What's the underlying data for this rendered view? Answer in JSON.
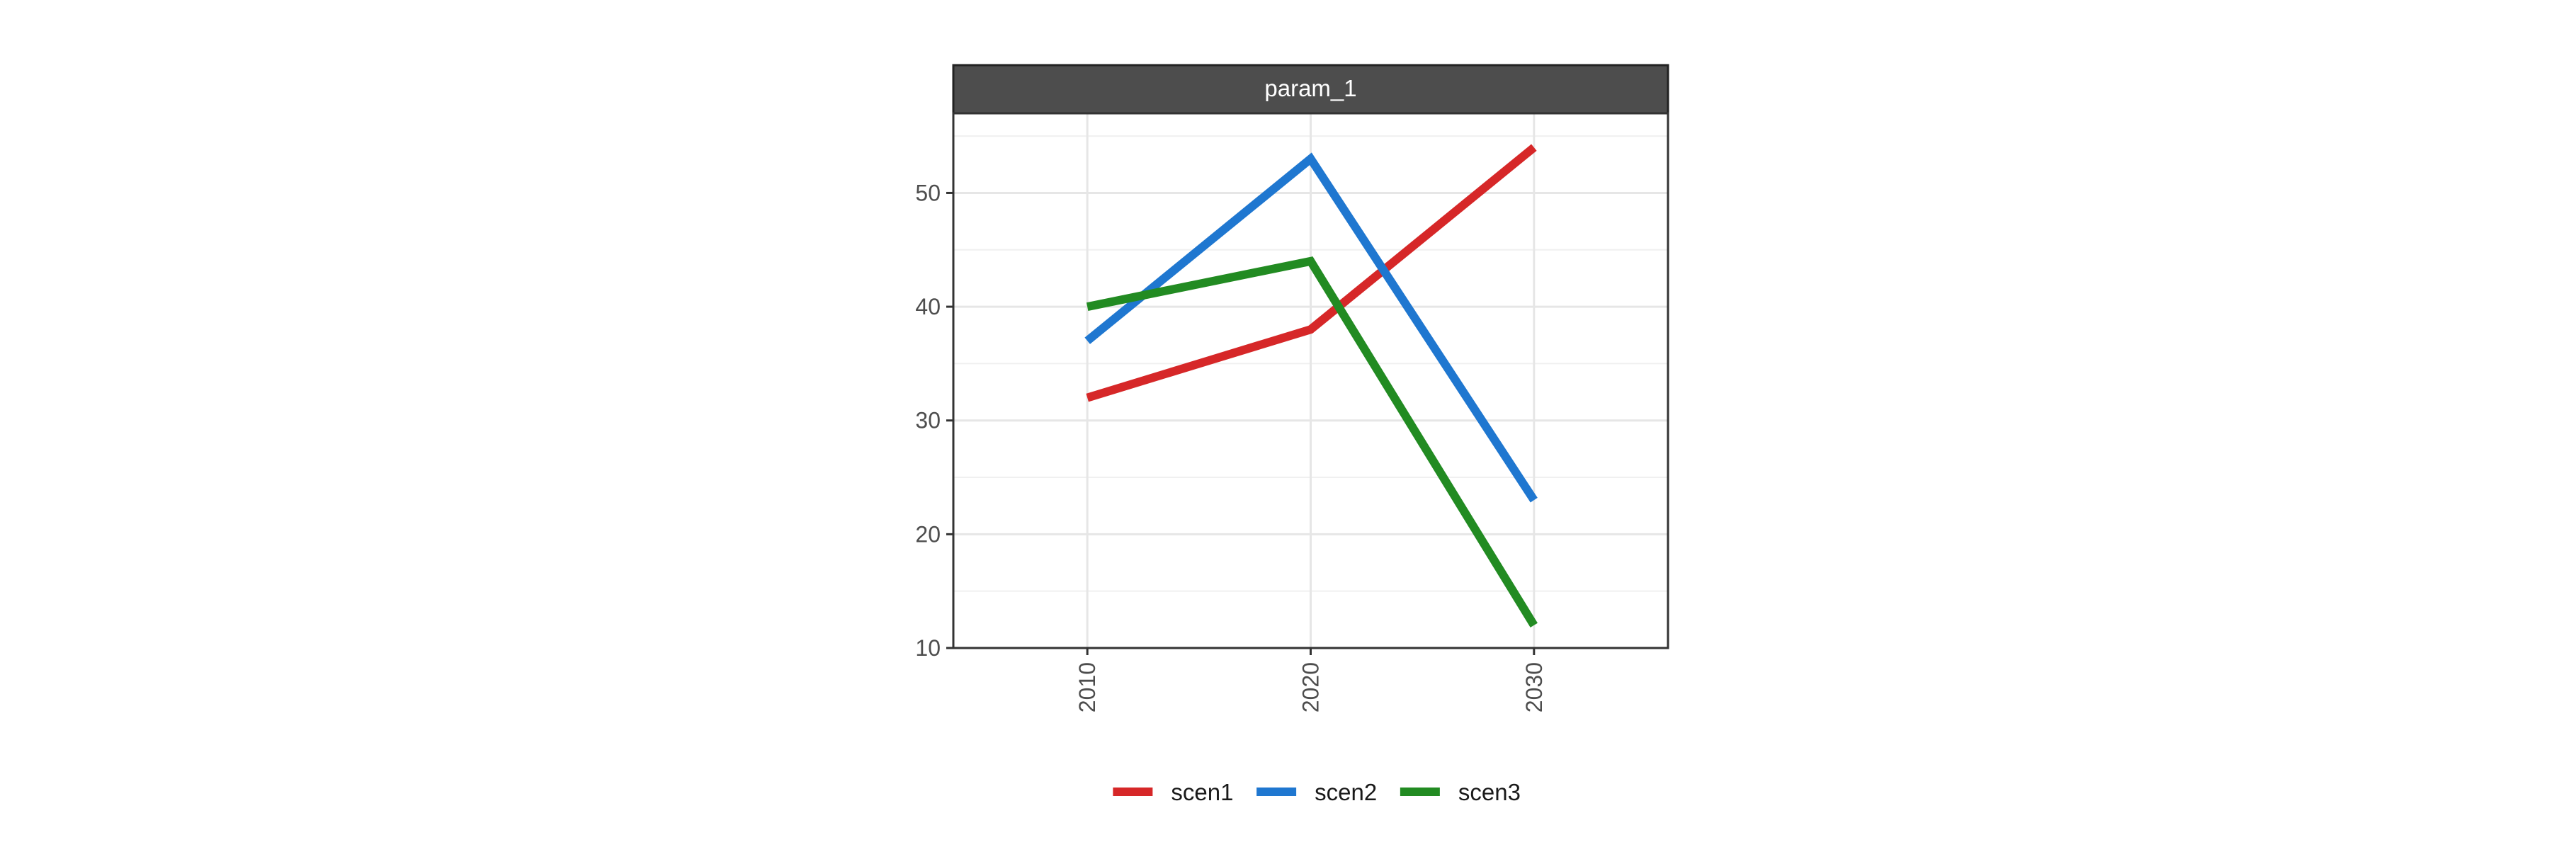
{
  "chart_data": {
    "type": "line",
    "title": "",
    "facet_label": "param_1",
    "x": [
      "2010",
      "2020",
      "2030"
    ],
    "xlim": [
      2004,
      2036
    ],
    "ylim": [
      10,
      57
    ],
    "y_ticks": [
      "10",
      "20",
      "30",
      "40",
      "50"
    ],
    "grid": true,
    "legend_position": "bottom",
    "series": [
      {
        "name": "scen1",
        "color": "#d62728",
        "values": [
          32,
          38,
          54
        ]
      },
      {
        "name": "scen2",
        "color": "#1f77d0",
        "values": [
          37,
          53,
          23
        ]
      },
      {
        "name": "scen3",
        "color": "#228b22",
        "values": [
          40,
          44,
          12
        ]
      }
    ]
  }
}
